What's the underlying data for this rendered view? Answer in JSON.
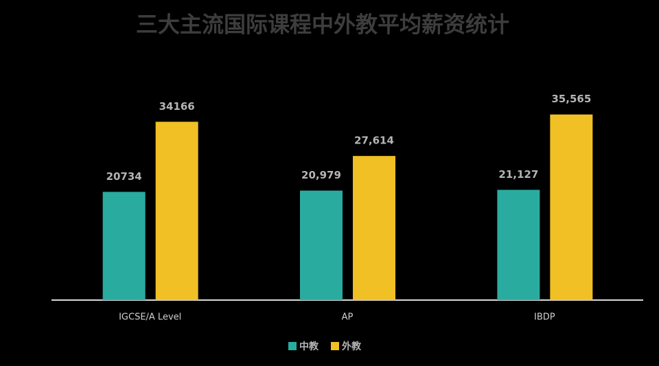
{
  "chart_data": {
    "type": "bar",
    "title": "三大主流国际课程中外教平均薪资统计",
    "categories": [
      "IGCSE/A Level",
      "AP",
      "IBDP"
    ],
    "series": [
      {
        "name": "中教",
        "color": "#2aaba0",
        "values": [
          20734,
          20979,
          21127
        ],
        "value_labels": [
          "20734",
          "20,979",
          "21,127"
        ]
      },
      {
        "name": "外教",
        "color": "#f0c024",
        "values": [
          34166,
          27614,
          35565
        ],
        "value_labels": [
          "34166",
          "27,614",
          "35,565"
        ]
      }
    ],
    "ylim": [
      0,
      40000
    ],
    "legend": "bottom"
  }
}
